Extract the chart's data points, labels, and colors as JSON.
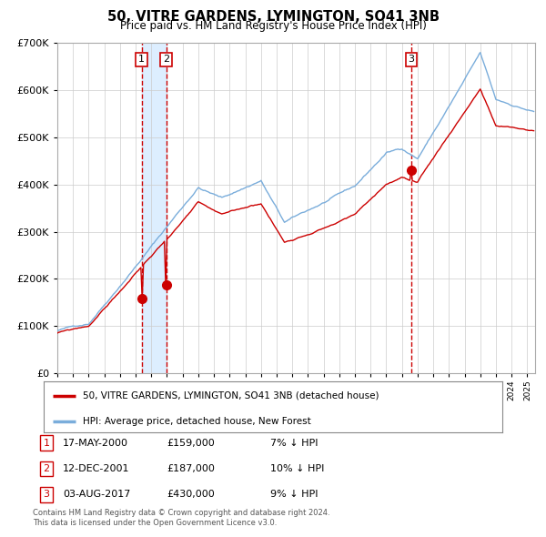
{
  "title": "50, VITRE GARDENS, LYMINGTON, SO41 3NB",
  "subtitle": "Price paid vs. HM Land Registry's House Price Index (HPI)",
  "legend_line1": "50, VITRE GARDENS, LYMINGTON, SO41 3NB (detached house)",
  "legend_line2": "HPI: Average price, detached house, New Forest",
  "footer1": "Contains HM Land Registry data © Crown copyright and database right 2024.",
  "footer2": "This data is licensed under the Open Government Licence v3.0.",
  "table": [
    {
      "num": "1",
      "date": "17-MAY-2000",
      "price": "£159,000",
      "hpi": "7% ↓ HPI"
    },
    {
      "num": "2",
      "date": "12-DEC-2001",
      "price": "£187,000",
      "hpi": "10% ↓ HPI"
    },
    {
      "num": "3",
      "date": "03-AUG-2017",
      "price": "£430,000",
      "hpi": "9% ↓ HPI"
    }
  ],
  "sale1_x": 2000.38,
  "sale1_y": 159000,
  "sale2_x": 2001.95,
  "sale2_y": 187000,
  "sale3_x": 2017.59,
  "sale3_y": 430000,
  "ylim": [
    0,
    700000
  ],
  "xlim_start": 1995,
  "xlim_end": 2025.5,
  "red_color": "#cc0000",
  "blue_color": "#7aaddb",
  "background_color": "#ffffff",
  "grid_color": "#cccccc",
  "shade_color": "#ddeeff"
}
